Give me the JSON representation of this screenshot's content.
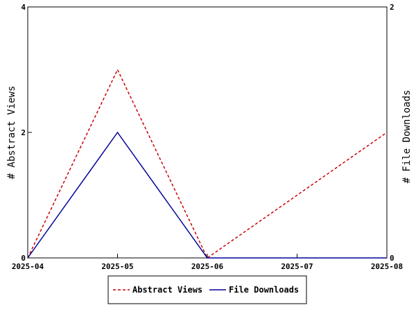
{
  "chart_data": {
    "type": "line",
    "x": [
      "2025-04",
      "2025-05",
      "2025-06",
      "2025-07",
      "2025-08"
    ],
    "series": [
      {
        "name": "Abstract Views",
        "axis": "left",
        "values": [
          0,
          3,
          0,
          1,
          2
        ],
        "color": "#cc0000",
        "style": "dashed"
      },
      {
        "name": "File Downloads",
        "axis": "right",
        "values": [
          0,
          1,
          0,
          0,
          0
        ],
        "color": "#000099",
        "style": "solid"
      }
    ],
    "ylabel_left": "# Abstract Views",
    "ylabel_right": "# File Downloads",
    "ylim_left": [
      0,
      4
    ],
    "yticks_left": [
      0,
      2,
      4
    ],
    "ylim_right": [
      0,
      2
    ],
    "yticks_right": [
      0,
      2
    ],
    "grid": false,
    "legend_position": "bottom"
  }
}
